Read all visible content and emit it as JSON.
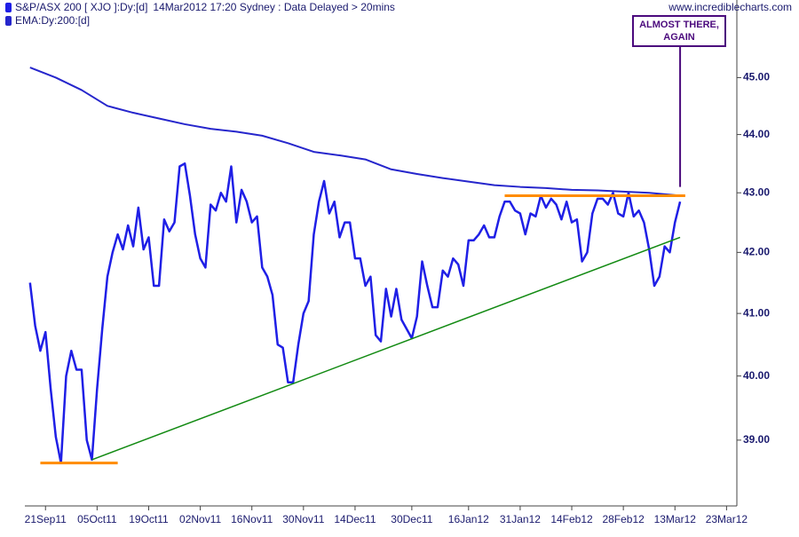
{
  "chart_data": {
    "type": "line",
    "title": "S&P/ASX 200 [ XJO ]:Dy:[d]",
    "subtitle": "14Mar2012 17:20 Sydney : Data Delayed > 20mins",
    "watermark": "www.incrediblecharts.com",
    "log_scale": true,
    "xlim": [
      -1,
      137
    ],
    "ylim": [
      38.0,
      46.4
    ],
    "xticks": [
      {
        "value": 3,
        "label": "21Sep11"
      },
      {
        "value": 13,
        "label": "05Oct11"
      },
      {
        "value": 23,
        "label": "19Oct11"
      },
      {
        "value": 33,
        "label": "02Nov11"
      },
      {
        "value": 43,
        "label": "16Nov11"
      },
      {
        "value": 53,
        "label": "30Nov11"
      },
      {
        "value": 63,
        "label": "14Dec11"
      },
      {
        "value": 74,
        "label": "30Dec11"
      },
      {
        "value": 85,
        "label": "16Jan12"
      },
      {
        "value": 95,
        "label": "31Jan12"
      },
      {
        "value": 105,
        "label": "14Feb12"
      },
      {
        "value": 115,
        "label": "28Feb12"
      },
      {
        "value": 125,
        "label": "13Mar12"
      },
      {
        "value": 135,
        "label": "23Mar12"
      }
    ],
    "yticks": [
      {
        "value": 39,
        "label": "39.00"
      },
      {
        "value": 40,
        "label": "40.00"
      },
      {
        "value": 41,
        "label": "41.00"
      },
      {
        "value": 42,
        "label": "42.00"
      },
      {
        "value": 43,
        "label": "43.00"
      },
      {
        "value": 44,
        "label": "44.00"
      },
      {
        "value": 45,
        "label": "45.00"
      }
    ],
    "series": [
      {
        "name": "S&P/ASX 200 [ XJO ]:Dy:[d]",
        "color": "#1f1fe6",
        "width": 2.5,
        "x": [
          0,
          1,
          2,
          3,
          4,
          5,
          6,
          7,
          8,
          9,
          10,
          11,
          12,
          13,
          14,
          15,
          16,
          17,
          18,
          19,
          20,
          21,
          22,
          23,
          24,
          25,
          26,
          27,
          28,
          29,
          30,
          31,
          32,
          33,
          34,
          35,
          36,
          37,
          38,
          39,
          40,
          41,
          42,
          43,
          44,
          45,
          46,
          47,
          48,
          49,
          50,
          51,
          52,
          53,
          54,
          55,
          56,
          57,
          58,
          59,
          60,
          61,
          62,
          63,
          64,
          65,
          66,
          67,
          68,
          69,
          70,
          71,
          72,
          73,
          74,
          75,
          76,
          77,
          78,
          79,
          80,
          81,
          82,
          83,
          84,
          85,
          86,
          87,
          88,
          89,
          90,
          91,
          92,
          93,
          94,
          95,
          96,
          97,
          98,
          99,
          100,
          101,
          102,
          103,
          104,
          105,
          106,
          107,
          108,
          109,
          110,
          111,
          112,
          113,
          114,
          115,
          116,
          117,
          118,
          119,
          120,
          121,
          122,
          123,
          124,
          125,
          126
        ],
        "values": [
          41.5,
          40.8,
          40.4,
          40.7,
          39.8,
          39.05,
          38.65,
          40.0,
          40.4,
          40.1,
          40.1,
          39.0,
          38.7,
          39.8,
          40.75,
          41.6,
          42.0,
          42.3,
          42.05,
          42.45,
          42.1,
          42.75,
          42.05,
          42.25,
          41.45,
          41.45,
          42.55,
          42.35,
          42.5,
          43.45,
          43.5,
          42.95,
          42.3,
          41.9,
          41.75,
          42.8,
          42.7,
          43.0,
          42.85,
          43.45,
          42.5,
          43.05,
          42.85,
          42.5,
          42.6,
          41.75,
          41.6,
          41.3,
          40.5,
          40.45,
          39.9,
          39.9,
          40.5,
          41.0,
          41.2,
          42.3,
          42.85,
          43.2,
          42.65,
          42.85,
          42.25,
          42.5,
          42.5,
          41.9,
          41.9,
          41.45,
          41.6,
          40.65,
          40.55,
          41.4,
          40.95,
          41.4,
          40.9,
          40.75,
          40.6,
          40.95,
          41.85,
          41.45,
          41.1,
          41.1,
          41.7,
          41.6,
          41.9,
          41.8,
          41.45,
          42.2,
          42.2,
          42.3,
          42.45,
          42.25,
          42.25,
          42.6,
          42.85,
          42.85,
          42.7,
          42.65,
          42.3,
          42.65,
          42.6,
          42.95,
          42.75,
          42.9,
          42.8,
          42.55,
          42.85,
          42.5,
          42.55,
          41.85,
          42.0,
          42.65,
          42.9,
          42.9,
          42.8,
          43.0,
          42.65,
          42.6,
          43.0,
          42.6,
          42.7,
          42.5,
          42.05,
          41.45,
          41.6,
          42.1,
          42.0,
          42.5,
          42.85
        ]
      },
      {
        "name": "EMA:Dy:200:[d]",
        "color": "#2626cc",
        "width": 2,
        "x": [
          0,
          5,
          10,
          15,
          20,
          25,
          30,
          35,
          40,
          45,
          50,
          55,
          60,
          65,
          70,
          75,
          80,
          85,
          90,
          95,
          100,
          105,
          110,
          115,
          120,
          125,
          126
        ],
        "values": [
          45.18,
          45.0,
          44.78,
          44.5,
          44.38,
          44.28,
          44.18,
          44.1,
          44.05,
          43.98,
          43.85,
          43.7,
          43.64,
          43.57,
          43.4,
          43.32,
          43.25,
          43.19,
          43.13,
          43.1,
          43.08,
          43.05,
          43.04,
          43.02,
          43.0,
          42.96,
          42.95
        ]
      }
    ],
    "lines": [
      {
        "color": "#ff8c00",
        "width": 3,
        "x": [
          2,
          17
        ],
        "y": [
          38.65,
          38.65
        ]
      },
      {
        "color": "#ff8c00",
        "width": 3,
        "x": [
          92,
          127
        ],
        "y": [
          42.95,
          42.95
        ]
      },
      {
        "color": "#128a12",
        "width": 1.5,
        "x": [
          12,
          126
        ],
        "y": [
          38.7,
          42.25
        ]
      }
    ],
    "callout": {
      "text": [
        "ALMOST THERE,",
        "AGAIN"
      ],
      "color": "#4b0a7d",
      "x": 126,
      "y": 43.1
    }
  }
}
